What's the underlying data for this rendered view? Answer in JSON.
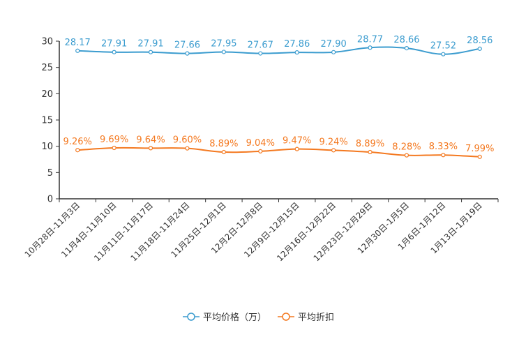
{
  "chart_data": {
    "type": "line",
    "title": "",
    "xlabel": "",
    "ylabel": "",
    "ylim": [
      0,
      30
    ],
    "yticks": [
      0,
      5,
      10,
      15,
      20,
      25,
      30
    ],
    "categories": [
      "10月28日-11月3日",
      "11月4日-11月10日",
      "11月11日-11月17日",
      "11月18日-11月24日",
      "11月25日-12月1日",
      "12月2日-12月8日",
      "12月9日-12月15日",
      "12月16日-12月22日",
      "12月23日-12月29日",
      "12月30日-1月5日",
      "1月6日-1月12日",
      "1月13日-1月19日"
    ],
    "series": [
      {
        "name": "平均价格（万）",
        "color": "#3b9ccf",
        "values": [
          28.17,
          27.91,
          27.91,
          27.66,
          27.95,
          27.67,
          27.86,
          27.9,
          28.77,
          28.66,
          27.52,
          28.56
        ],
        "labels": [
          "28.17",
          "27.91",
          "27.91",
          "27.66",
          "27.95",
          "27.67",
          "27.86",
          "27.90",
          "28.77",
          "28.66",
          "27.52",
          "28.56"
        ]
      },
      {
        "name": "平均折扣",
        "color": "#f47920",
        "values": [
          9.26,
          9.69,
          9.64,
          9.6,
          8.89,
          9.04,
          9.47,
          9.24,
          8.89,
          8.28,
          8.33,
          7.99
        ],
        "labels": [
          "9.26%",
          "9.69%",
          "9.64%",
          "9.60%",
          "8.89%",
          "9.04%",
          "9.47%",
          "9.24%",
          "8.89%",
          "8.28%",
          "8.33%",
          "7.99%"
        ]
      }
    ],
    "legend_position": "bottom-center"
  }
}
